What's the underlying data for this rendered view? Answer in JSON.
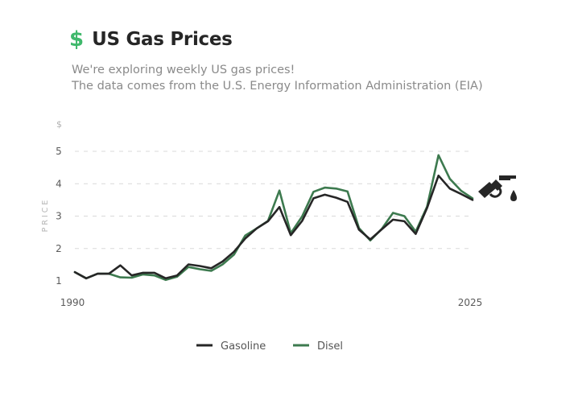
{
  "header": {
    "icon": "dollar-icon",
    "icon_glyph": "$",
    "title": "US Gas Prices",
    "subtitle_line1": "We're exploring weekly US gas prices!",
    "subtitle_line2": "The data comes from the U.S. Energy Information Administration (EIA)"
  },
  "colors": {
    "accent": "#3fb86b",
    "gasoline": "#262626",
    "diesel": "#3d7a4f",
    "grid": "#d9d9d9"
  },
  "decoration_icon": "fuel-pump-icon",
  "chart_data": {
    "type": "line",
    "title": "US Gas Prices",
    "xlabel": "",
    "ylabel": "PRICE",
    "yunit": "$",
    "x": [
      1990,
      1991,
      1992,
      1993,
      1994,
      1995,
      1996,
      1997,
      1998,
      1999,
      2000,
      2001,
      2002,
      2003,
      2004,
      2005,
      2006,
      2007,
      2008,
      2009,
      2010,
      2011,
      2012,
      2013,
      2014,
      2015,
      2016,
      2017,
      2018,
      2019,
      2020,
      2021,
      2022,
      2023,
      2024,
      2025
    ],
    "xlim": [
      1990,
      2025
    ],
    "ylim": [
      1,
      5
    ],
    "yticks": [
      1,
      2,
      3,
      4,
      5
    ],
    "xtick_labels": [
      "1990",
      "2025"
    ],
    "grid": true,
    "legend_position": "bottom-center",
    "series": [
      {
        "name": "Gasoline",
        "values": [
          1.27,
          1.08,
          1.22,
          1.22,
          1.48,
          1.17,
          1.25,
          1.25,
          1.08,
          1.17,
          1.51,
          1.46,
          1.39,
          1.6,
          1.9,
          2.31,
          2.62,
          2.84,
          3.28,
          2.41,
          2.85,
          3.55,
          3.66,
          3.57,
          3.44,
          2.58,
          2.28,
          2.59,
          2.89,
          2.84,
          2.45,
          3.25,
          4.25,
          3.85,
          3.68,
          3.5
        ]
      },
      {
        "name": "Disel",
        "values": [
          1.27,
          1.08,
          1.22,
          1.22,
          1.11,
          1.1,
          1.2,
          1.17,
          1.03,
          1.13,
          1.43,
          1.36,
          1.31,
          1.51,
          1.81,
          2.4,
          2.62,
          2.85,
          3.79,
          2.47,
          2.99,
          3.75,
          3.88,
          3.85,
          3.76,
          2.63,
          2.25,
          2.6,
          3.1,
          3.0,
          2.52,
          3.29,
          4.88,
          4.15,
          3.78,
          3.55
        ]
      }
    ]
  }
}
